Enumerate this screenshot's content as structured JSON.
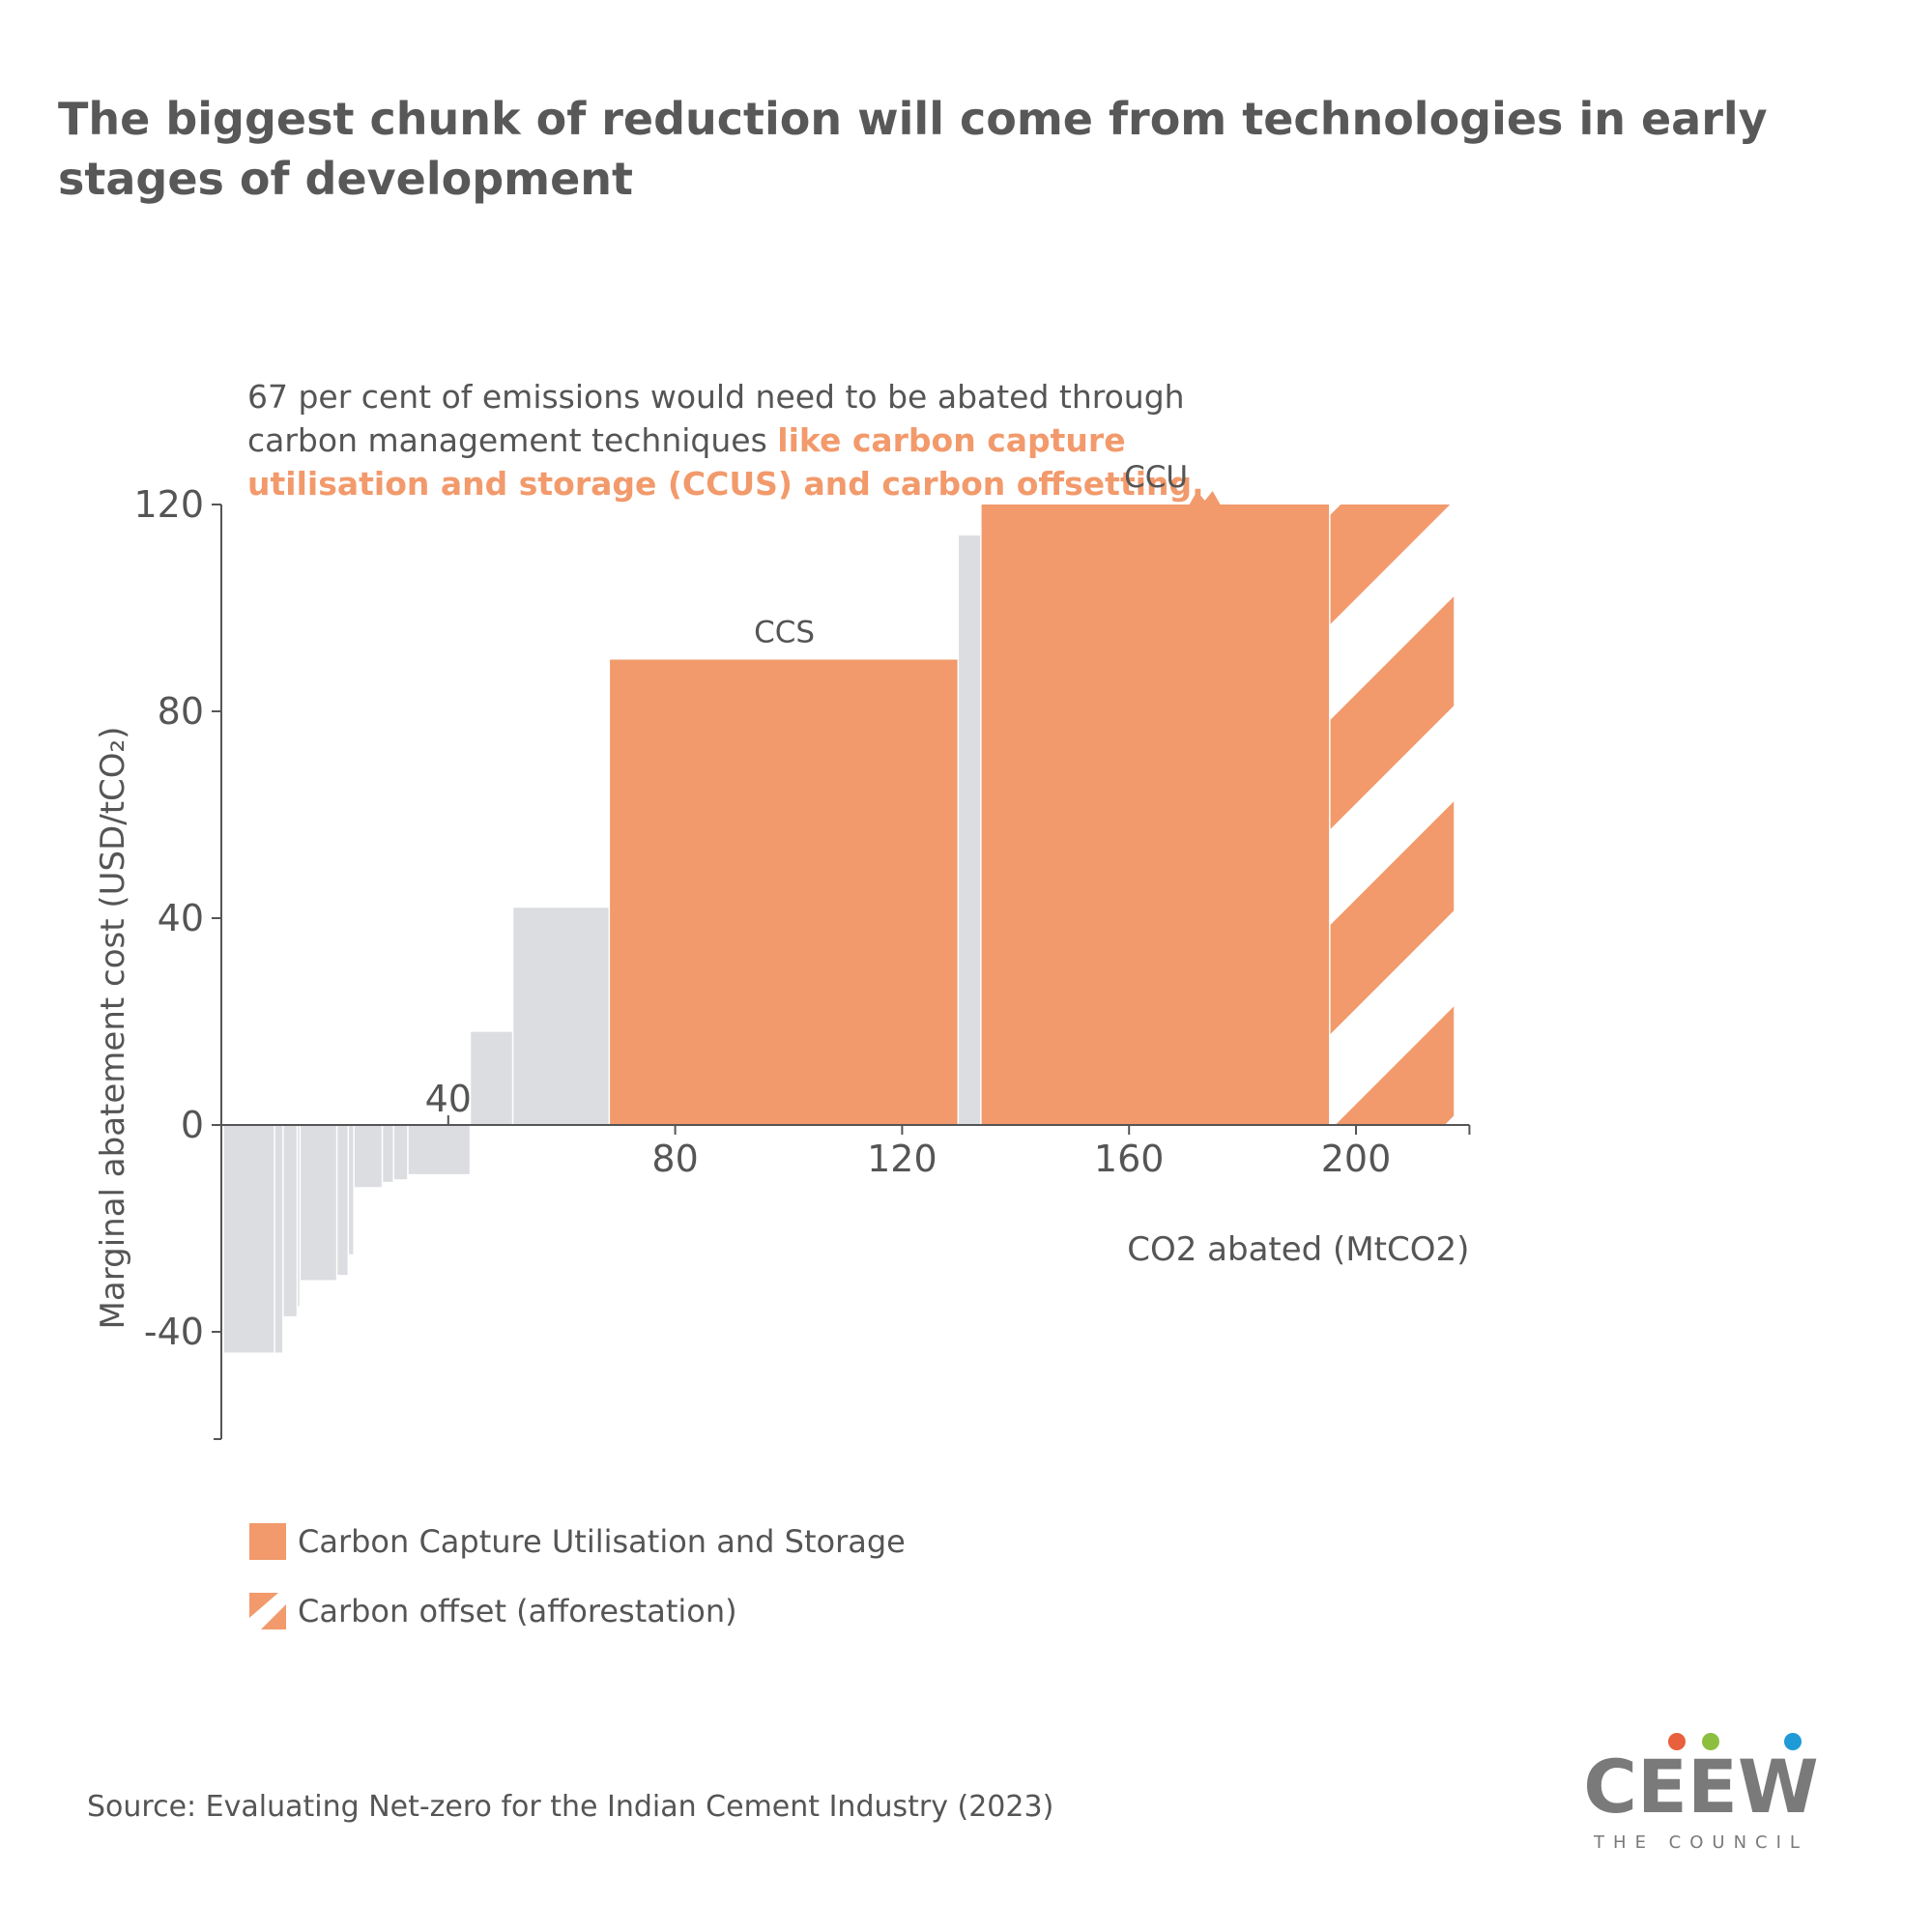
{
  "title": "The biggest chunk of reduction will come from technologies in early stages of development",
  "annotation": {
    "plain": "67 per cent of emissions would need to be abated through carbon management techniques ",
    "highlight": "like carbon capture utilisation and storage (CCUS) and carbon offsetting."
  },
  "colors": {
    "ccus": "#f29a6c",
    "other": "#dcdde1",
    "axis": "#555555"
  },
  "legend": {
    "ccus": "Carbon Capture Utilisation and Storage",
    "offset": "Carbon offset (afforestation)"
  },
  "source": "Source: Evaluating Net-zero for the Indian Cement Industry (2023)",
  "logo": {
    "name": "CEEW",
    "tagline": "THE COUNCIL"
  },
  "chart_data": {
    "type": "bar",
    "subtype": "marginal abatement cost curve (variable-width bars)",
    "xlabel": "CO2 abated (MtCO2)",
    "ylabel": "Marginal abatement cost (USD/tCO₂)",
    "xlim": [
      0,
      220
    ],
    "ylim": [
      -60,
      120
    ],
    "x_ticks": [
      40,
      80,
      120,
      160,
      200
    ],
    "y_ticks": [
      120,
      80,
      40,
      0,
      -40
    ],
    "grid": false,
    "legend_position": "bottom-left",
    "bars": [
      {
        "x0": 0.5,
        "x1": 9.5,
        "value": -44,
        "category": "other"
      },
      {
        "x0": 9.5,
        "x1": 11,
        "value": -44,
        "category": "other"
      },
      {
        "x0": 11,
        "x1": 13.5,
        "value": -37,
        "category": "other"
      },
      {
        "x0": 13.5,
        "x1": 14,
        "value": -35,
        "category": "other"
      },
      {
        "x0": 14,
        "x1": 20.5,
        "value": -30,
        "category": "other"
      },
      {
        "x0": 20.5,
        "x1": 22.5,
        "value": -29,
        "category": "other"
      },
      {
        "x0": 22.5,
        "x1": 23.5,
        "value": -25,
        "category": "other"
      },
      {
        "x0": 23.5,
        "x1": 28.5,
        "value": -12,
        "category": "other"
      },
      {
        "x0": 28.5,
        "x1": 30.5,
        "value": -11,
        "category": "other"
      },
      {
        "x0": 30.5,
        "x1": 33,
        "value": -10.5,
        "category": "other"
      },
      {
        "x0": 33,
        "x1": 44,
        "value": -9.5,
        "category": "other"
      },
      {
        "x0": 44,
        "x1": 51.5,
        "value": 18,
        "category": "other"
      },
      {
        "x0": 51.5,
        "x1": 68.5,
        "value": 42,
        "category": "other"
      },
      {
        "x0": 68.5,
        "x1": 130,
        "value": 90,
        "category": "ccus",
        "label": "CCS"
      },
      {
        "x0": 130,
        "x1": 134,
        "value": 114,
        "category": "other"
      },
      {
        "x0": 134,
        "x1": 195.5,
        "value": 120,
        "category": "ccus",
        "label": "CCU",
        "truncated": true
      },
      {
        "x0": 195.5,
        "x1": 217.5,
        "value": 120,
        "category": "offset"
      }
    ]
  }
}
